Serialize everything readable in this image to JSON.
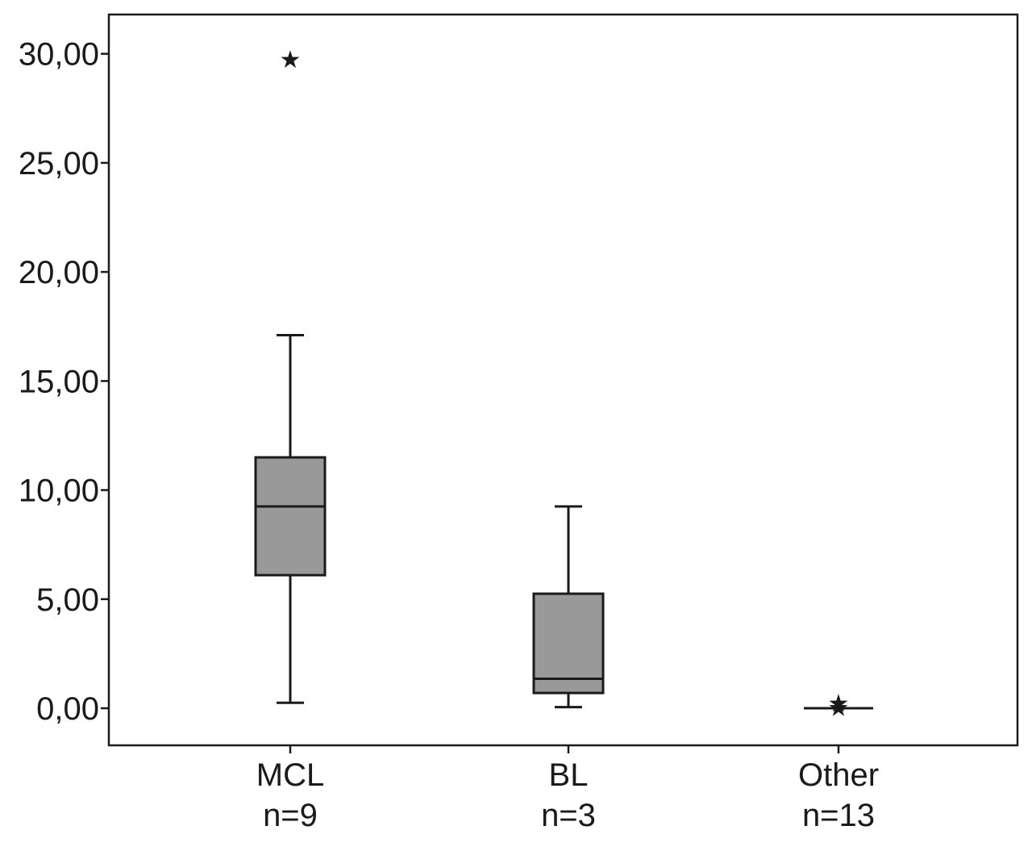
{
  "chart_data": {
    "type": "boxplot",
    "title": "",
    "xlabel": "",
    "ylabel": "",
    "ylim": [
      -1.7,
      31.8
    ],
    "yticks": [
      0,
      5,
      10,
      15,
      20,
      25,
      30
    ],
    "ytick_labels": [
      "0,00",
      "5,00",
      "10,00",
      "15,00",
      "20,00",
      "25,00",
      "30,00"
    ],
    "colors": {
      "box_fill": "#999999",
      "line": "#1a1a1a"
    },
    "categories": [
      {
        "label": "MCL",
        "n_label": "n=9",
        "whisker_low": 0.25,
        "q1": 6.1,
        "median": 9.25,
        "q3": 11.5,
        "whisker_high": 17.1,
        "outliers": [
          29.8
        ]
      },
      {
        "label": "BL",
        "n_label": "n=3",
        "whisker_low": 0.05,
        "q1": 0.7,
        "median": 1.35,
        "q3": 5.25,
        "whisker_high": 9.25,
        "outliers": []
      },
      {
        "label": "Other",
        "n_label": "n=13",
        "whisker_low": 0.0,
        "q1": 0.0,
        "median": 0.0,
        "q3": 0.0,
        "whisker_high": 0.0,
        "outliers": [
          0.3,
          0.1
        ]
      }
    ]
  }
}
